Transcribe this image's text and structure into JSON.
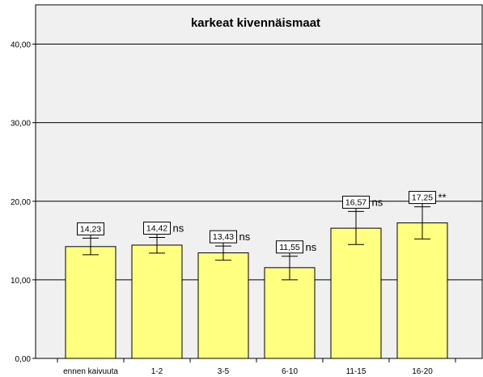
{
  "chart_data": {
    "type": "bar",
    "title": "karkeat kivennäismaat",
    "xlabel": "",
    "ylabel": "",
    "categories": [
      "ennen kaivuuta",
      "1-2",
      "3-5",
      "6-10",
      "11-15",
      "16-20"
    ],
    "values": [
      14.23,
      14.42,
      13.43,
      11.55,
      16.57,
      17.25
    ],
    "value_labels": [
      "14,23",
      "14,42",
      "13,43",
      "11,55",
      "16,57",
      "17,25"
    ],
    "significance": [
      "",
      "ns",
      "ns",
      "ns",
      "ns",
      "**"
    ],
    "error_low": [
      13.2,
      13.4,
      12.5,
      10.0,
      14.5,
      15.2
    ],
    "error_high": [
      15.3,
      15.4,
      14.3,
      13.0,
      18.7,
      19.3
    ],
    "yticks": [
      0,
      10,
      20,
      30,
      40
    ],
    "ytick_labels": [
      "0,00",
      "10,00",
      "20,00",
      "30,00",
      "40,00"
    ],
    "ylim": [
      0,
      45
    ],
    "grid": true,
    "colors": {
      "bar_fill": "#ffff80",
      "bar_stroke": "#000000",
      "plot_bg": "#f0f0f0"
    }
  }
}
